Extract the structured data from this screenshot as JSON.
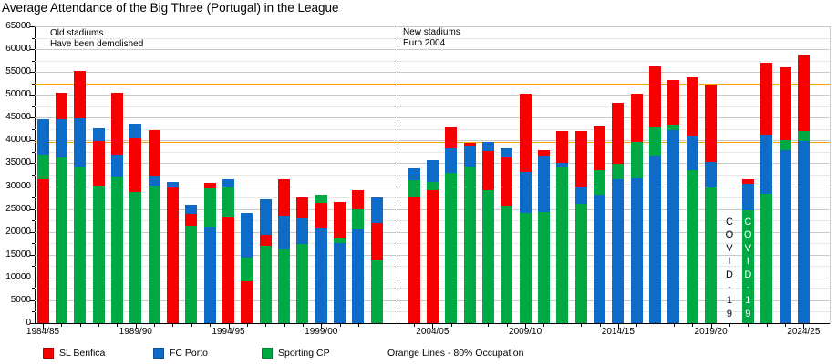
{
  "title": "Average Attendance of the Big Three (Portugal) in the League",
  "annotations": {
    "old_stadiums_line1": "Old stadiums",
    "old_stadiums_line2": "Have been demolished",
    "new_stadiums_line1": "New stadiums",
    "new_stadiums_line2": "Euro 2004",
    "covid_label": "COVID-19"
  },
  "legend": {
    "items": [
      {
        "label": "SL Benfica",
        "color": "#f60000"
      },
      {
        "label": "FC Porto",
        "color": "#0e6cc8"
      },
      {
        "label": "Sporting CP",
        "color": "#00a944"
      }
    ],
    "note": "Orange Lines - 80% Occupation"
  },
  "chart_data": {
    "type": "bar",
    "subtype": "overlapping-bars",
    "y_axis": {
      "min": 0,
      "max": 65000,
      "major_step": 5000,
      "minor_step": 2500
    },
    "x_ticks": [
      "1984/85",
      "1989/90",
      "1994/95",
      "1999/00",
      "2004/05",
      "2009/10",
      "2014/15",
      "2019/20",
      "2024/25"
    ],
    "reference_lines": [
      {
        "value": 52500,
        "color": "#ffa500",
        "meaning": "80% occupation (new Luz)"
      },
      {
        "value": 39700,
        "color": "#ffa500",
        "meaning": "80% occupation (Dragao / Alvalade)"
      }
    ],
    "series_meta": [
      {
        "key": "benfica",
        "name": "SL Benfica",
        "color": "#f60000"
      },
      {
        "key": "porto",
        "name": "FC Porto",
        "color": "#0e6cc8"
      },
      {
        "key": "sporting",
        "name": "Sporting CP",
        "color": "#00a944"
      }
    ],
    "sections": [
      {
        "label": "Old stadiums / Have been demolished",
        "from": "1984/85",
        "to": "2002/03"
      },
      {
        "label": "New stadiums / Euro 2004",
        "from": "2003/04",
        "to": "2024/25"
      }
    ],
    "covid_annotations": [
      {
        "season": "2020/21",
        "style": "dark"
      },
      {
        "season": "2021/22",
        "style": "light"
      }
    ],
    "seasons": [
      {
        "season": "1984/85",
        "benfica": 31500,
        "porto": 44700,
        "sporting": 36800
      },
      {
        "season": "1985/86",
        "benfica": 50500,
        "porto": 44700,
        "sporting": 36300
      },
      {
        "season": "1986/87",
        "benfica": 55300,
        "porto": 44800,
        "sporting": 34200
      },
      {
        "season": "1987/88",
        "benfica": 39800,
        "porto": 42600,
        "sporting": 30100
      },
      {
        "season": "1988/89",
        "benfica": 50500,
        "porto": 36800,
        "sporting": 32100
      },
      {
        "season": "1989/90",
        "benfica": 40500,
        "porto": 43600,
        "sporting": 28700
      },
      {
        "season": "1990/91",
        "benfica": 42300,
        "porto": 32400,
        "sporting": 30100
      },
      {
        "season": "1991/92",
        "benfica": 29800,
        "porto": 31000,
        "sporting": null
      },
      {
        "season": "1992/93",
        "benfica": 23900,
        "porto": 25900,
        "sporting": 21300
      },
      {
        "season": "1993/94",
        "benfica": 30800,
        "porto": 20900,
        "sporting": 29600
      },
      {
        "season": "1994/95",
        "benfica": 23200,
        "porto": 31500,
        "sporting": 29700
      },
      {
        "season": "1995/96",
        "benfica": 9200,
        "porto": 24200,
        "sporting": 14400
      },
      {
        "season": "1996/97",
        "benfica": 19400,
        "porto": 27200,
        "sporting": 16900
      },
      {
        "season": "1997/98",
        "benfica": 31500,
        "porto": 23500,
        "sporting": 16200
      },
      {
        "season": "1998/99",
        "benfica": 27500,
        "porto": 22900,
        "sporting": 17400
      },
      {
        "season": "1999/00",
        "benfica": 26400,
        "porto": 20700,
        "sporting": 28200
      },
      {
        "season": "2000/01",
        "benfica": 26500,
        "porto": 17500,
        "sporting": 18500
      },
      {
        "season": "2001/02",
        "benfica": 29200,
        "porto": 20500,
        "sporting": 24900
      },
      {
        "season": "2002/03",
        "benfica": 21900,
        "porto": 27500,
        "sporting": 13800
      },
      {
        "season": "2003/04",
        "benfica": 27700,
        "porto": 33900,
        "sporting": 31400
      },
      {
        "season": "2004/05",
        "benfica": 29200,
        "porto": 35600,
        "sporting": 30900
      },
      {
        "season": "2005/06",
        "benfica": 42900,
        "porto": 38300,
        "sporting": 32800
      },
      {
        "season": "2006/07",
        "benfica": 39500,
        "porto": 38900,
        "sporting": 34200
      },
      {
        "season": "2007/08",
        "benfica": 37600,
        "porto": 39600,
        "sporting": 29100
      },
      {
        "season": "2008/09",
        "benfica": 36300,
        "porto": 38300,
        "sporting": 25800
      },
      {
        "season": "2009/10",
        "benfica": 50200,
        "porto": 33100,
        "sporting": 24200
      },
      {
        "season": "2010/11",
        "benfica": 37900,
        "porto": 36600,
        "sporting": 24400
      },
      {
        "season": "2011/12",
        "benfica": 42100,
        "porto": 35100,
        "sporting": 34200
      },
      {
        "season": "2012/13",
        "benfica": 42000,
        "porto": 29900,
        "sporting": 26200
      },
      {
        "season": "2013/14",
        "benfica": 43100,
        "porto": 28200,
        "sporting": 33400
      },
      {
        "season": "2014/15",
        "benfica": 48300,
        "porto": 31600,
        "sporting": 34900
      },
      {
        "season": "2015/16",
        "benfica": 50300,
        "porto": 31800,
        "sporting": 39600
      },
      {
        "season": "2016/17",
        "benfica": 56200,
        "porto": 36600,
        "sporting": 42900
      },
      {
        "season": "2017/18",
        "benfica": 53300,
        "porto": 42300,
        "sporting": 43500
      },
      {
        "season": "2018/19",
        "benfica": 53800,
        "porto": 41100,
        "sporting": 33400
      },
      {
        "season": "2019/20",
        "benfica": 52300,
        "porto": 35200,
        "sporting": 29800
      },
      {
        "season": "2020/21",
        "benfica": null,
        "porto": null,
        "sporting": null
      },
      {
        "season": "2021/22",
        "benfica": 31500,
        "porto": 30600,
        "sporting": 24800
      },
      {
        "season": "2022/23",
        "benfica": 57000,
        "porto": 41200,
        "sporting": 28400
      },
      {
        "season": "2023/24",
        "benfica": 56000,
        "porto": 37800,
        "sporting": 40000
      },
      {
        "season": "2024/25",
        "benfica": 58800,
        "porto": 39900,
        "sporting": 42100
      }
    ]
  }
}
